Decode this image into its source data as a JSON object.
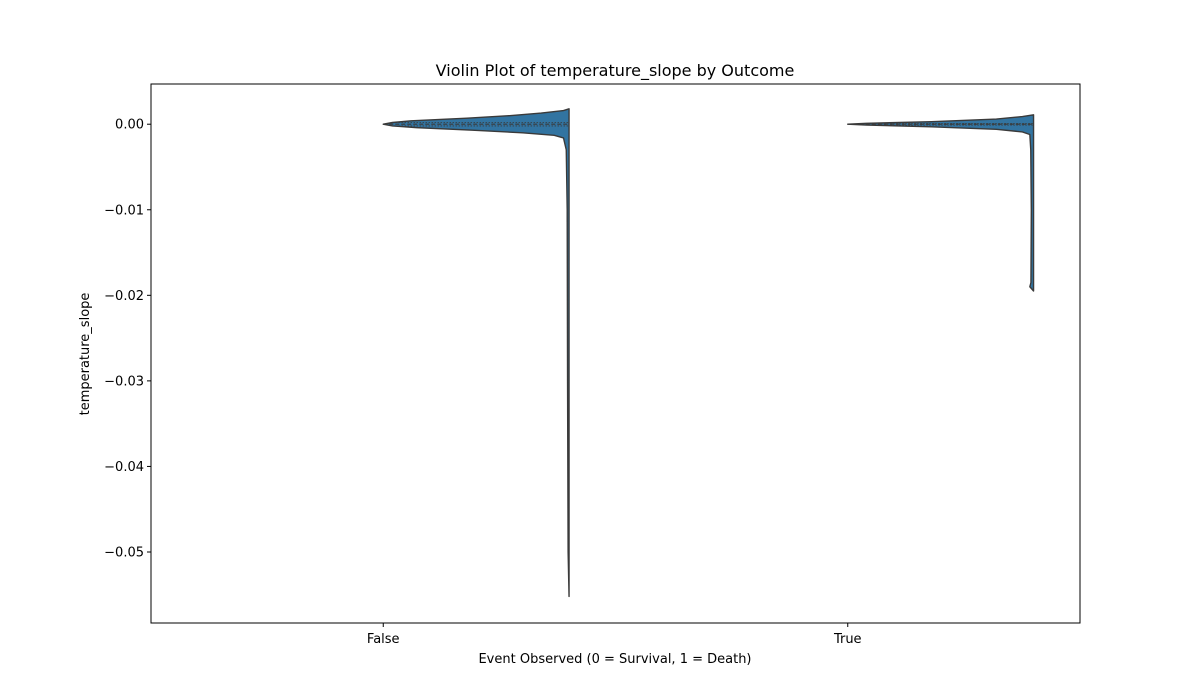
{
  "chart_data": {
    "type": "violin",
    "title": "Violin Plot of temperature_slope by Outcome",
    "xlabel": "Event Observed (0 = Survival, 1 = Death)",
    "ylabel": "temperature_slope",
    "categories": [
      "False",
      "True"
    ],
    "y_ticks": [
      0.0,
      -0.01,
      -0.02,
      -0.03,
      -0.04,
      -0.05
    ],
    "y_tick_labels": [
      "0.00",
      "−0.01",
      "−0.02",
      "−0.03",
      "−0.04",
      "−0.05"
    ],
    "ylim": [
      -0.0583,
      0.0047
    ],
    "grid": false,
    "legend": "none",
    "fill_color": "#3274a1",
    "edge_color": "#3a3a3a",
    "series": [
      {
        "category": "False",
        "min": -0.0552,
        "max": 0.0018,
        "median": 0.0,
        "q1": -0.0002,
        "q3": 0.0002,
        "density": [
          [
            0.0018,
            0.0
          ],
          [
            0.0016,
            0.03
          ],
          [
            0.0013,
            0.15
          ],
          [
            0.001,
            0.32
          ],
          [
            0.0007,
            0.55
          ],
          [
            0.0004,
            0.85
          ],
          [
            0.0002,
            0.95
          ],
          [
            0.0,
            1.0
          ],
          [
            -0.0002,
            0.95
          ],
          [
            -0.0004,
            0.82
          ],
          [
            -0.0007,
            0.52
          ],
          [
            -0.001,
            0.25
          ],
          [
            -0.0013,
            0.08
          ],
          [
            -0.0016,
            0.03
          ],
          [
            -0.003,
            0.015
          ],
          [
            -0.01,
            0.01
          ],
          [
            -0.03,
            0.008
          ],
          [
            -0.05,
            0.005
          ],
          [
            -0.0552,
            0.0
          ]
        ]
      },
      {
        "category": "True",
        "min": -0.0195,
        "max": 0.0011,
        "median": 0.0,
        "q1": -0.0001,
        "q3": 0.0001,
        "density": [
          [
            0.0011,
            0.0
          ],
          [
            0.0009,
            0.06
          ],
          [
            0.0006,
            0.2
          ],
          [
            0.0003,
            0.55
          ],
          [
            0.0001,
            0.9
          ],
          [
            0.0,
            1.0
          ],
          [
            -0.0001,
            0.9
          ],
          [
            -0.0003,
            0.55
          ],
          [
            -0.0006,
            0.2
          ],
          [
            -0.0009,
            0.06
          ],
          [
            -0.0012,
            0.02
          ],
          [
            -0.003,
            0.015
          ],
          [
            -0.01,
            0.012
          ],
          [
            -0.0185,
            0.014
          ],
          [
            -0.019,
            0.02
          ],
          [
            -0.0195,
            0.0
          ]
        ]
      }
    ]
  }
}
